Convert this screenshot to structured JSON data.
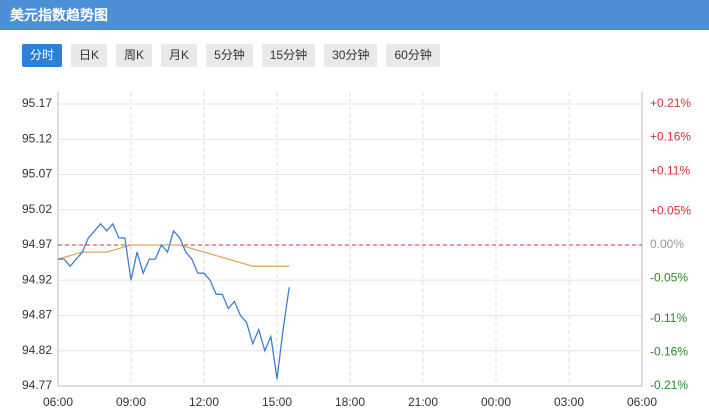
{
  "tabs": {
    "items": [
      "分时",
      "日K",
      "周K",
      "月K",
      "5分钟",
      "15分钟",
      "30分钟",
      "60分钟"
    ],
    "active": 0
  },
  "chart_data": {
    "type": "line",
    "title": "美元指数趋势图",
    "series": [
      {
        "color": "#3f7fd0",
        "x": [
          "06:00",
          "06:15",
          "06:30",
          "06:45",
          "07:00",
          "07:15",
          "07:30",
          "07:45",
          "08:00",
          "08:15",
          "08:30",
          "08:45",
          "09:00",
          "09:15",
          "09:30",
          "09:45",
          "10:00",
          "10:15",
          "10:30",
          "10:45",
          "11:00",
          "11:15",
          "11:30",
          "11:45",
          "12:00",
          "12:15",
          "12:30",
          "12:45",
          "13:00",
          "13:15",
          "13:30",
          "13:45",
          "14:00",
          "14:15",
          "14:30",
          "14:45",
          "15:00",
          "15:15",
          "15:30"
        ],
        "values": [
          94.95,
          94.95,
          94.94,
          94.95,
          94.96,
          94.98,
          94.99,
          95.0,
          94.99,
          95.0,
          94.98,
          94.98,
          94.92,
          94.96,
          94.93,
          94.95,
          94.95,
          94.97,
          94.96,
          94.99,
          94.98,
          94.96,
          94.95,
          94.93,
          94.93,
          94.92,
          94.9,
          94.9,
          94.88,
          94.89,
          94.87,
          94.86,
          94.83,
          94.85,
          94.82,
          94.84,
          94.78,
          94.85,
          94.91
        ]
      },
      {
        "color": "#e0a860",
        "x": [
          "06:00",
          "07:00",
          "08:00",
          "09:00",
          "10:00",
          "11:00",
          "12:00",
          "13:00",
          "14:00",
          "15:00",
          "15:30"
        ],
        "values": [
          94.95,
          94.96,
          94.96,
          94.97,
          94.97,
          94.97,
          94.96,
          94.95,
          94.94,
          94.94,
          94.94
        ]
      }
    ],
    "baseline": 94.97,
    "baseline_color": "#d63030",
    "xlim": [
      "06:00",
      "06:00"
    ],
    "xticks": [
      "06:00",
      "09:00",
      "12:00",
      "15:00",
      "18:00",
      "21:00",
      "00:00",
      "03:00",
      "06:00"
    ],
    "ylim": [
      94.77,
      95.17
    ],
    "yticks": [
      94.77,
      94.82,
      94.87,
      94.92,
      94.97,
      95.02,
      95.07,
      95.12,
      95.17
    ],
    "y2lim": [
      -0.21,
      0.21
    ],
    "y2ticks": [
      {
        "value": -0.21,
        "label": "-0.21%"
      },
      {
        "value": -0.16,
        "label": "-0.16%"
      },
      {
        "value": -0.11,
        "label": "-0.11%"
      },
      {
        "value": -0.05,
        "label": "-0.05%"
      },
      {
        "value": 0,
        "label": "0.00%"
      },
      {
        "value": 0.05,
        "label": "+0.05%"
      },
      {
        "value": 0.11,
        "label": "+0.11%"
      },
      {
        "value": 0.16,
        "label": "+0.16%"
      },
      {
        "value": 0.21,
        "label": "+0.21%"
      }
    ],
    "y2_colors": {
      "up": "#d63030",
      "down": "#2a8a2a",
      "flat": "#999999"
    },
    "grid": true
  }
}
